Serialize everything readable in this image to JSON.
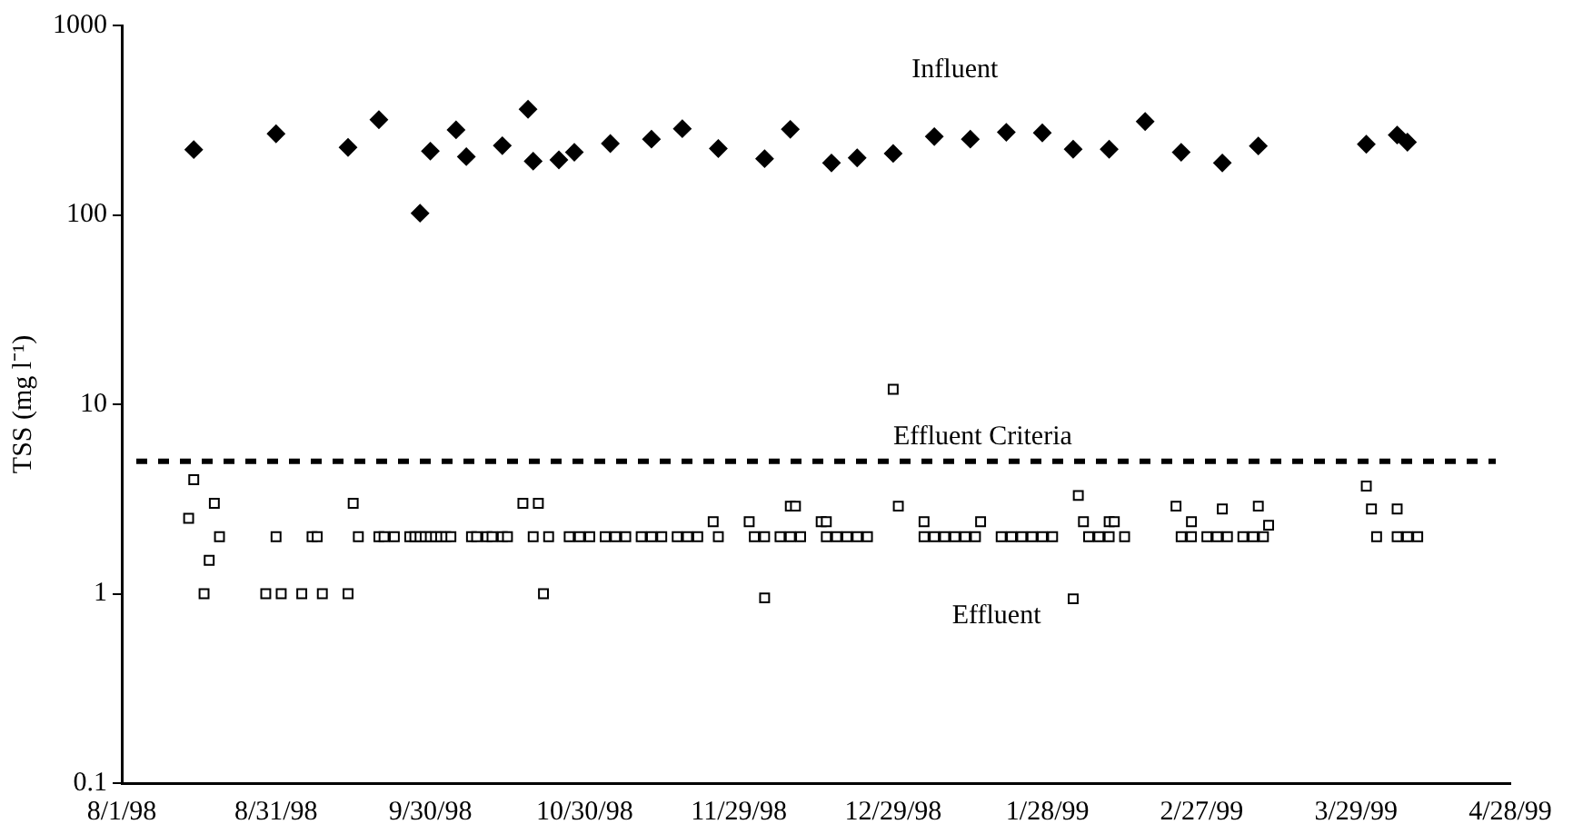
{
  "chart_data": {
    "type": "scatter",
    "ylabel": "TSS (mg l⁻¹)",
    "log": "y",
    "grid": false,
    "legend": false,
    "xlim": [
      "1998-08-01",
      "1999-04-28"
    ],
    "xticks": [
      {
        "value": "1998-08-01",
        "label": "8/1/98"
      },
      {
        "value": "1998-08-31",
        "label": "8/31/98"
      },
      {
        "value": "1998-09-30",
        "label": "9/30/98"
      },
      {
        "value": "1998-10-30",
        "label": "10/30/98"
      },
      {
        "value": "1998-11-29",
        "label": "11/29/98"
      },
      {
        "value": "1998-12-29",
        "label": "12/29/98"
      },
      {
        "value": "1999-01-28",
        "label": "1/28/99"
      },
      {
        "value": "1999-02-27",
        "label": "2/27/99"
      },
      {
        "value": "1999-03-29",
        "label": "3/29/99"
      },
      {
        "value": "1999-04-28",
        "label": "4/28/99"
      }
    ],
    "ylim": [
      0.1,
      1000
    ],
    "yticks": [
      0.1,
      1,
      10,
      100,
      1000
    ],
    "ref_lines": [
      {
        "axis": "y",
        "value": 5,
        "label": "Effluent Criteria",
        "color": "#000000",
        "line_style": "dashed"
      }
    ],
    "series": [
      {
        "name": "Influent",
        "color": "#000000",
        "marker": "diamond",
        "x": [
          "1998-08-15",
          "1998-08-31",
          "1998-09-14",
          "1998-09-20",
          "1998-09-28",
          "1998-09-30",
          "1998-10-05",
          "1998-10-07",
          "1998-10-14",
          "1998-10-19",
          "1998-10-20",
          "1998-10-25",
          "1998-10-28",
          "1998-11-04",
          "1998-11-12",
          "1998-11-18",
          "1998-11-25",
          "1998-12-04",
          "1998-12-09",
          "1998-12-17",
          "1998-12-22",
          "1998-12-29",
          "1999-01-06",
          "1999-01-13",
          "1999-01-20",
          "1999-01-27",
          "1999-02-02",
          "1999-02-09",
          "1999-02-16",
          "1999-02-23",
          "1999-03-03",
          "1999-03-10",
          "1999-03-31",
          "1999-04-06",
          "1999-04-08"
        ],
        "values": [
          221,
          268,
          227,
          318,
          102,
          217,
          281,
          203,
          232,
          361,
          192,
          195,
          214,
          238,
          251,
          285,
          224,
          198,
          283,
          188,
          200,
          211,
          259,
          251,
          273,
          271,
          222,
          222,
          311,
          214,
          188,
          231,
          236,
          264,
          242
        ]
      },
      {
        "name": "Effluent",
        "color": "#000000",
        "marker": "square",
        "x": [
          "1998-08-14",
          "1998-08-15",
          "1998-08-17",
          "1998-08-18",
          "1998-08-19",
          "1998-08-20",
          "1998-08-29",
          "1998-08-31",
          "1998-09-01",
          "1998-09-05",
          "1998-09-07",
          "1998-09-08",
          "1998-09-09",
          "1998-09-14",
          "1998-09-15",
          "1998-09-16",
          "1998-09-20",
          "1998-09-21",
          "1998-09-23",
          "1998-09-26",
          "1998-09-27",
          "1998-09-28",
          "1998-09-29",
          "1998-09-30",
          "1998-10-01",
          "1998-10-02",
          "1998-10-03",
          "1998-10-04",
          "1998-10-08",
          "1998-10-09",
          "1998-10-11",
          "1998-10-12",
          "1998-10-14",
          "1998-10-15",
          "1998-10-18",
          "1998-10-20",
          "1998-10-21",
          "1998-10-22",
          "1998-10-23",
          "1998-10-27",
          "1998-10-29",
          "1998-10-31",
          "1998-11-03",
          "1998-11-05",
          "1998-11-07",
          "1998-11-10",
          "1998-11-12",
          "1998-11-14",
          "1998-11-17",
          "1998-11-19",
          "1998-11-21",
          "1998-11-24",
          "1998-11-25",
          "1998-12-01",
          "1998-12-02",
          "1998-12-04",
          "1998-12-04",
          "1998-12-07",
          "1998-12-09",
          "1998-12-09",
          "1998-12-10",
          "1998-12-11",
          "1998-12-15",
          "1998-12-16",
          "1998-12-16",
          "1998-12-18",
          "1998-12-20",
          "1998-12-22",
          "1998-12-24",
          "1998-12-29",
          "1998-12-30",
          "1999-01-04",
          "1999-01-04",
          "1999-01-06",
          "1999-01-08",
          "1999-01-10",
          "1999-01-12",
          "1999-01-14",
          "1999-01-15",
          "1999-01-19",
          "1999-01-21",
          "1999-01-23",
          "1999-01-25",
          "1999-01-27",
          "1999-01-29",
          "1999-02-02",
          "1999-02-03",
          "1999-02-04",
          "1999-02-05",
          "1999-02-07",
          "1999-02-09",
          "1999-02-09",
          "1999-02-10",
          "1999-02-12",
          "1999-02-22",
          "1999-02-23",
          "1999-02-25",
          "1999-02-25",
          "1999-02-28",
          "1999-03-02",
          "1999-03-03",
          "1999-03-04",
          "1999-03-07",
          "1999-03-09",
          "1999-03-10",
          "1999-03-11",
          "1999-03-12",
          "1999-03-31",
          "1999-04-01",
          "1999-04-02",
          "1999-04-06",
          "1999-04-06",
          "1999-04-08",
          "1999-04-10"
        ],
        "values": [
          2.5,
          4,
          1,
          1.5,
          3,
          2,
          1,
          2,
          1,
          1,
          2,
          2,
          1,
          1,
          3,
          2,
          2,
          2,
          2,
          2,
          2,
          2,
          2,
          2,
          2,
          2,
          2,
          2,
          2,
          2,
          2,
          2,
          2,
          2,
          3,
          2,
          3,
          1,
          2,
          2,
          2,
          2,
          2,
          2,
          2,
          2,
          2,
          2,
          2,
          2,
          2,
          2.4,
          2,
          2.4,
          2,
          2,
          0.95,
          2,
          2.9,
          2,
          2.9,
          2,
          2.4,
          2.4,
          2,
          2,
          2,
          2,
          2,
          12,
          2.9,
          2.4,
          2,
          2,
          2,
          2,
          2,
          2,
          2.4,
          2,
          2,
          2,
          2,
          2,
          2,
          0.94,
          3.3,
          2.4,
          2,
          2,
          2,
          2.4,
          2.4,
          2,
          2.9,
          2,
          2.4,
          2,
          2,
          2,
          2.8,
          2,
          2,
          2,
          2.9,
          2,
          2.3,
          3.7,
          2.8,
          2,
          2.8,
          2,
          2,
          2
        ]
      }
    ]
  }
}
